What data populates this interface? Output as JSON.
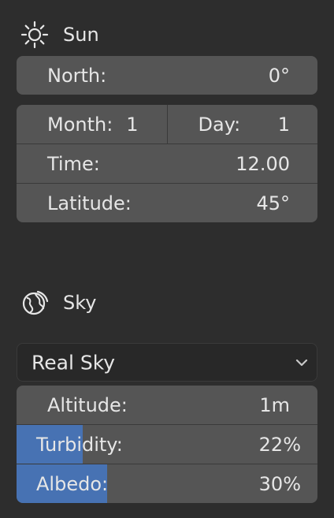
{
  "sun": {
    "title": "Sun",
    "icon": "sun-icon",
    "north": {
      "label": "North:",
      "value": "0°"
    },
    "month": {
      "label": "Month:",
      "value": "1"
    },
    "day": {
      "label": "Day:",
      "value": "1"
    },
    "time": {
      "label": "Time:",
      "value": "12.00"
    },
    "latitude": {
      "label": "Latitude:",
      "value": "45°"
    }
  },
  "sky": {
    "title": "Sky",
    "icon": "globe-icon",
    "type_selected": "Real Sky",
    "altitude": {
      "label": "Altitude:",
      "value": "1m"
    },
    "turbidity": {
      "label": "Turbidity:",
      "value": "22%",
      "fraction": 0.22
    },
    "albedo": {
      "label": "Albedo:",
      "value": "30%",
      "fraction": 0.3
    }
  },
  "colors": {
    "background": "#2d2d2d",
    "field": "#555555",
    "slider_fill": "#4772b3",
    "dropdown": "#282828"
  }
}
